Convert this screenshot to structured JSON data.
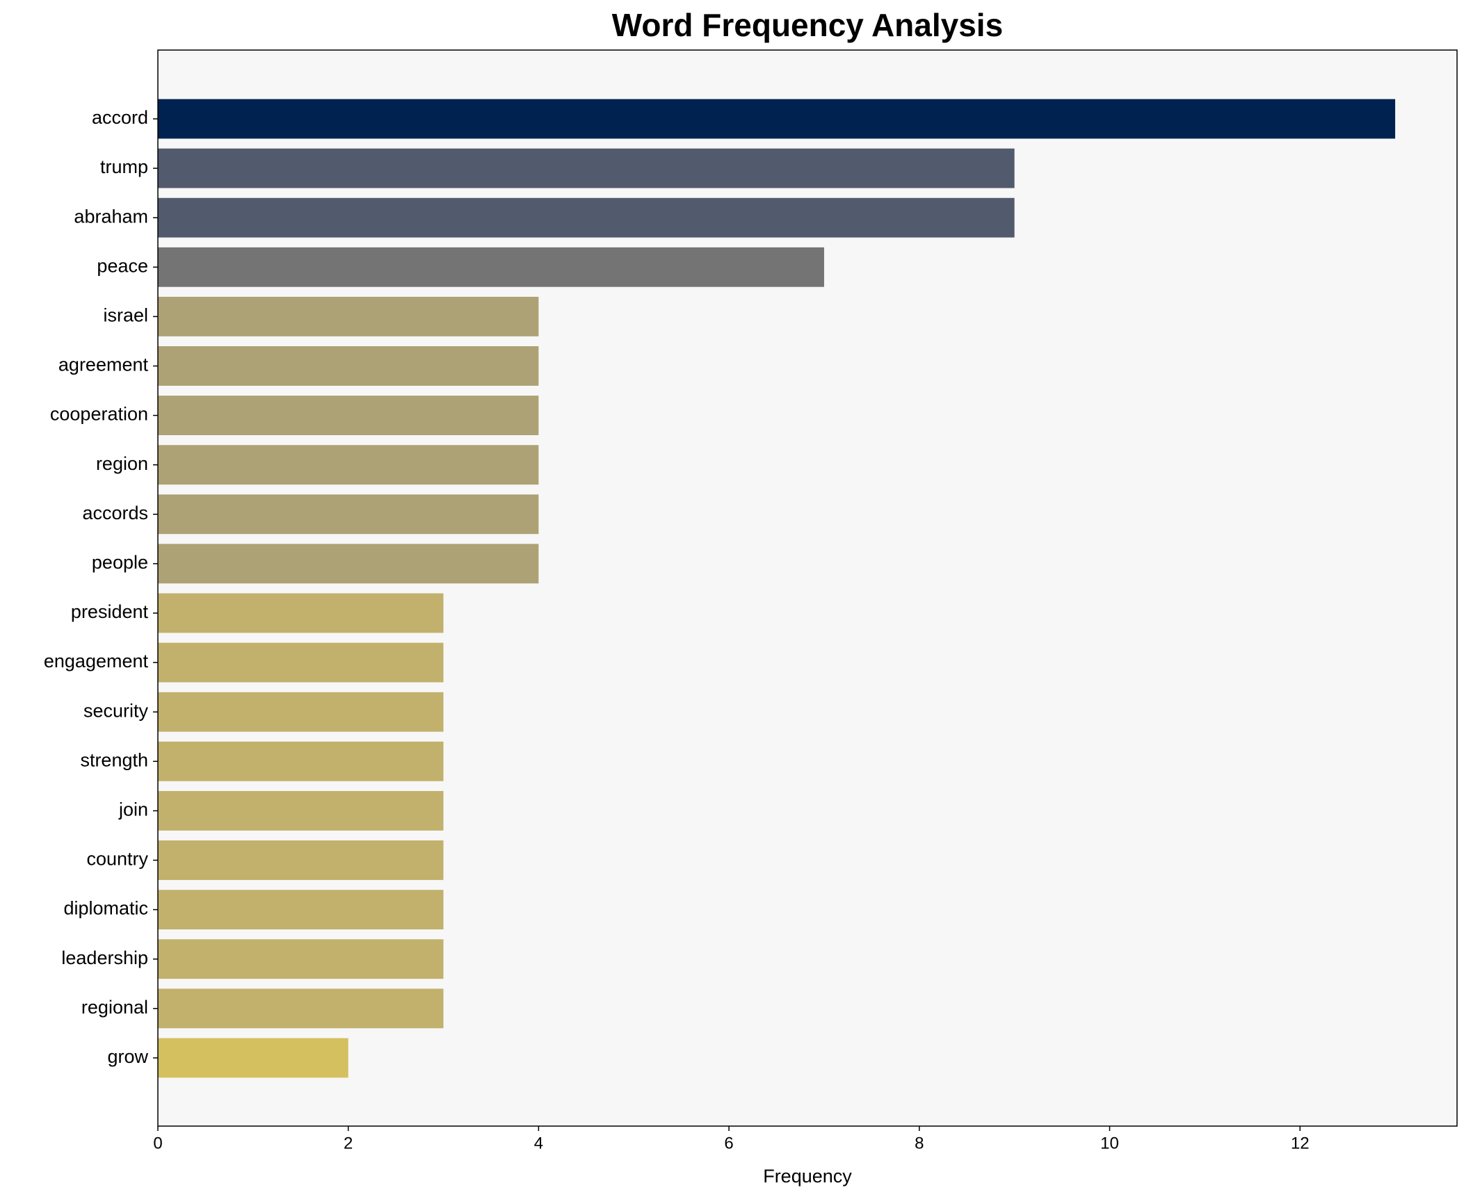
{
  "chart_data": {
    "type": "barh",
    "title": "Word Frequency Analysis",
    "x_label": "Frequency",
    "categories": [
      "accord",
      "trump",
      "abraham",
      "peace",
      "israel",
      "agreement",
      "cooperation",
      "region",
      "accords",
      "people",
      "president",
      "engagement",
      "security",
      "strength",
      "join",
      "country",
      "diplomatic",
      "leadership",
      "regional",
      "grow"
    ],
    "values": [
      13,
      9,
      9,
      7,
      4,
      4,
      4,
      4,
      4,
      4,
      3,
      3,
      3,
      3,
      3,
      3,
      3,
      3,
      3,
      2
    ],
    "colors": [
      "#002251",
      "#525a6e",
      "#525a6e",
      "#747474",
      "#ada275",
      "#ada275",
      "#ada275",
      "#ada275",
      "#ada275",
      "#ada275",
      "#c1b16c",
      "#c1b16c",
      "#c1b16c",
      "#c1b16c",
      "#c1b16c",
      "#c1b16c",
      "#c1b16c",
      "#c1b16c",
      "#c1b16c",
      "#d5c05f"
    ],
    "xlim": [
      0,
      13.65
    ],
    "xticks": [
      0,
      2,
      4,
      6,
      8,
      10,
      12
    ],
    "background": "#f7f7f7"
  }
}
